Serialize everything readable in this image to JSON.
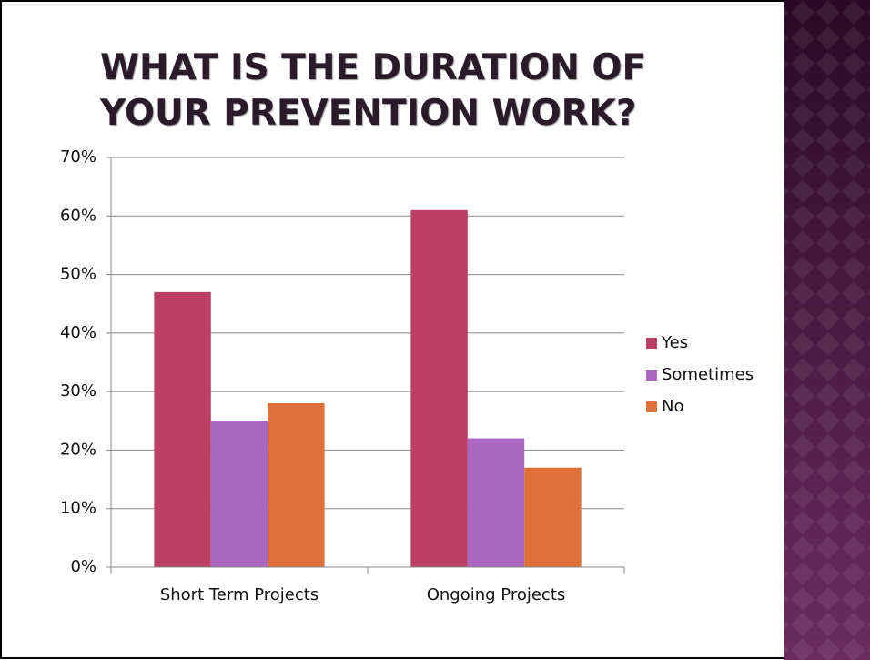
{
  "chart_data": {
    "type": "bar",
    "title": "WHAT IS THE DURATION OF YOUR PREVENTION WORK?",
    "categories": [
      "Short Term Projects",
      "Ongoing Projects"
    ],
    "series": [
      {
        "name": "Yes",
        "color": "#bb3e64",
        "values": [
          47,
          61
        ]
      },
      {
        "name": "Sometimes",
        "color": "#ab66bf",
        "values": [
          25,
          22
        ]
      },
      {
        "name": "No",
        "color": "#e0703a",
        "values": [
          28,
          17
        ]
      }
    ],
    "ylim": [
      0,
      70
    ],
    "yticks": [
      {
        "value": 0,
        "label": "0%"
      },
      {
        "value": 10,
        "label": "10%"
      },
      {
        "value": 20,
        "label": "20%"
      },
      {
        "value": 30,
        "label": "30%"
      },
      {
        "value": 40,
        "label": "40%"
      },
      {
        "value": 50,
        "label": "50%"
      },
      {
        "value": 60,
        "label": "60%"
      },
      {
        "value": 70,
        "label": "70%"
      }
    ],
    "grid": true,
    "legend": "right"
  }
}
